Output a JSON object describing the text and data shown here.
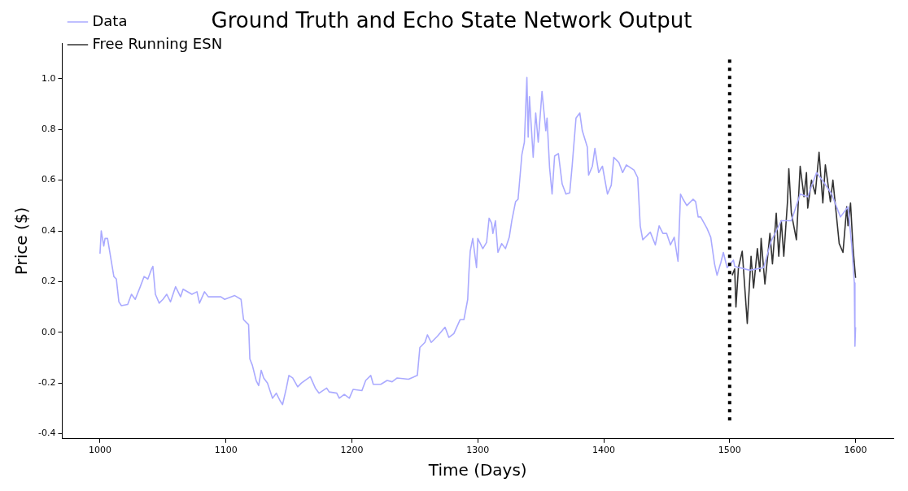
{
  "chart_data": {
    "type": "line",
    "title": "Ground Truth and Echo State Network Output",
    "xlabel": "Time (Days)",
    "ylabel": "Price ($)",
    "xlim": [
      970,
      1630
    ],
    "xticks": [
      1000,
      1100,
      1200,
      1300,
      1400,
      1500,
      1600
    ],
    "ylim": [
      -0.42,
      1.14
    ],
    "yticks": [
      -0.4,
      -0.2,
      {
        "value": 0,
        "label": "0.0"
      },
      0.2,
      0.4,
      0.6,
      0.8,
      {
        "value": 1,
        "label": "1.0"
      }
    ],
    "grid": false,
    "legend": "top left",
    "marker": "none",
    "line_style": "solid",
    "ref_lines": [
      {
        "axis": "x",
        "value": 1500,
        "color": "#000000",
        "line_style": "dotted"
      }
    ],
    "series": [
      {
        "name": "Data",
        "color": "#aaaaff",
        "x": [
          1000,
          1001,
          1003,
          1004,
          1006,
          1008,
          1011,
          1013,
          1015,
          1017,
          1022,
          1025,
          1028,
          1032,
          1035,
          1038,
          1041,
          1042,
          1044,
          1047,
          1050,
          1053,
          1056,
          1060,
          1064,
          1066,
          1073,
          1077,
          1079,
          1083,
          1086,
          1096,
          1099,
          1107,
          1112,
          1114,
          1118,
          1119,
          1121,
          1124,
          1126,
          1128,
          1130,
          1133,
          1137,
          1140,
          1143,
          1145,
          1148,
          1150,
          1153,
          1157,
          1160,
          1167,
          1171,
          1174,
          1180,
          1182,
          1188,
          1190,
          1194,
          1198,
          1201,
          1208,
          1211,
          1215,
          1217,
          1223,
          1228,
          1232,
          1236,
          1245,
          1252,
          1254,
          1258,
          1260,
          1263,
          1268,
          1274,
          1277,
          1281,
          1286,
          1289,
          1292,
          1293,
          1294,
          1296,
          1299,
          1300,
          1304,
          1307,
          1309,
          1311,
          1312,
          1314,
          1316,
          1319,
          1322,
          1325,
          1327,
          1330,
          1332,
          1335,
          1337,
          1339,
          1340,
          1341,
          1344,
          1346,
          1348,
          1351,
          1354,
          1355,
          1357,
          1359,
          1361,
          1364,
          1367,
          1370,
          1373,
          1375,
          1378,
          1381,
          1383,
          1387,
          1388,
          1391,
          1393,
          1396,
          1399,
          1403,
          1406,
          1408,
          1412,
          1415,
          1418,
          1424,
          1427,
          1429,
          1431,
          1437,
          1441,
          1444,
          1447,
          1450,
          1453,
          1456,
          1459,
          1461,
          1463,
          1466,
          1471,
          1473,
          1475,
          1477,
          1482,
          1485,
          1488,
          1490,
          1493,
          1495,
          1498,
          1503,
          1504,
          1516,
          1527,
          1533,
          1541,
          1549,
          1556,
          1562,
          1569,
          1575,
          1581,
          1588,
          1594,
          1597,
          1599,
          1599.5,
          1600
        ],
        "values": [
          0.31,
          0.4,
          0.34,
          0.37,
          0.37,
          0.31,
          0.22,
          0.21,
          0.12,
          0.105,
          0.11,
          0.15,
          0.13,
          0.18,
          0.22,
          0.21,
          0.25,
          0.26,
          0.15,
          0.115,
          0.13,
          0.15,
          0.12,
          0.18,
          0.14,
          0.17,
          0.15,
          0.16,
          0.115,
          0.16,
          0.14,
          0.14,
          0.13,
          0.145,
          0.13,
          0.05,
          0.03,
          -0.105,
          -0.13,
          -0.19,
          -0.21,
          -0.15,
          -0.18,
          -0.2,
          -0.26,
          -0.24,
          -0.27,
          -0.285,
          -0.22,
          -0.17,
          -0.18,
          -0.215,
          -0.2,
          -0.175,
          -0.22,
          -0.24,
          -0.22,
          -0.235,
          -0.24,
          -0.26,
          -0.245,
          -0.26,
          -0.225,
          -0.23,
          -0.19,
          -0.17,
          -0.205,
          -0.205,
          -0.19,
          -0.195,
          -0.18,
          -0.185,
          -0.17,
          -0.06,
          -0.04,
          -0.01,
          -0.04,
          -0.015,
          0.02,
          -0.02,
          -0.005,
          0.05,
          0.05,
          0.13,
          0.24,
          0.32,
          0.37,
          0.255,
          0.37,
          0.33,
          0.355,
          0.45,
          0.43,
          0.39,
          0.44,
          0.315,
          0.35,
          0.33,
          0.375,
          0.44,
          0.515,
          0.525,
          0.7,
          0.75,
          1.005,
          0.77,
          0.93,
          0.69,
          0.865,
          0.75,
          0.95,
          0.795,
          0.845,
          0.65,
          0.545,
          0.695,
          0.705,
          0.585,
          0.545,
          0.55,
          0.66,
          0.845,
          0.865,
          0.795,
          0.73,
          0.62,
          0.655,
          0.725,
          0.63,
          0.655,
          0.545,
          0.58,
          0.69,
          0.67,
          0.63,
          0.66,
          0.64,
          0.61,
          0.42,
          0.365,
          0.395,
          0.345,
          0.42,
          0.39,
          0.39,
          0.345,
          0.375,
          0.28,
          0.545,
          0.525,
          0.5,
          0.525,
          0.515,
          0.455,
          0.455,
          0.41,
          0.375,
          0.27,
          0.225,
          0.275,
          0.315,
          0.255,
          0.285,
          0.26,
          0.245,
          0.255,
          0.36,
          0.44,
          0.44,
          0.545,
          0.535,
          0.63,
          0.59,
          0.545,
          0.455,
          0.495,
          0.34,
          0.195,
          -0.055,
          0.02
        ]
      },
      {
        "name": "Free Running ESN",
        "color": "#333333",
        "x": [
          1502,
          1504,
          1505,
          1507,
          1510,
          1514,
          1517,
          1519,
          1522,
          1524,
          1525,
          1528,
          1532,
          1534,
          1537,
          1539,
          1541,
          1543,
          1546,
          1547,
          1549,
          1553,
          1556,
          1559,
          1561,
          1562,
          1565,
          1568,
          1571,
          1574,
          1576,
          1580,
          1582,
          1587,
          1590,
          1593,
          1594,
          1596,
          1598,
          1600
        ],
        "values": [
          0.225,
          0.25,
          0.1,
          0.255,
          0.32,
          0.035,
          0.3,
          0.175,
          0.33,
          0.24,
          0.37,
          0.19,
          0.39,
          0.27,
          0.47,
          0.3,
          0.44,
          0.3,
          0.52,
          0.645,
          0.47,
          0.365,
          0.655,
          0.535,
          0.63,
          0.49,
          0.6,
          0.545,
          0.71,
          0.51,
          0.66,
          0.515,
          0.6,
          0.35,
          0.315,
          0.495,
          0.42,
          0.51,
          0.33,
          0.215
        ]
      }
    ]
  }
}
